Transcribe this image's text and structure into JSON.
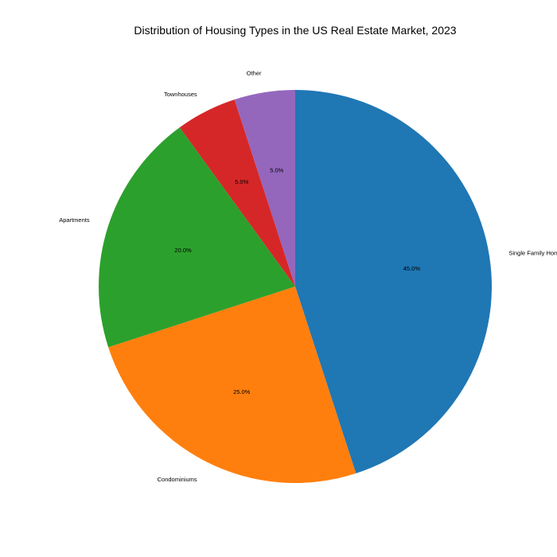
{
  "chart_data": {
    "type": "pie",
    "title": "Distribution of Housing Types in the US Real Estate Market, 2023",
    "categories": [
      "Single Family Homes",
      "Condominiums",
      "Apartments",
      "Townhouses",
      "Other"
    ],
    "values": [
      45.0,
      25.0,
      20.0,
      5.0,
      5.0
    ],
    "value_labels": [
      "45.0%",
      "25.0%",
      "20.0%",
      "5.0%",
      "5.0%"
    ],
    "colors": [
      "#1f77b4",
      "#ff7f0e",
      "#2ca02c",
      "#d62728",
      "#9467bd"
    ],
    "start_angle": "top",
    "direction": "clockwise",
    "legend": "none"
  }
}
